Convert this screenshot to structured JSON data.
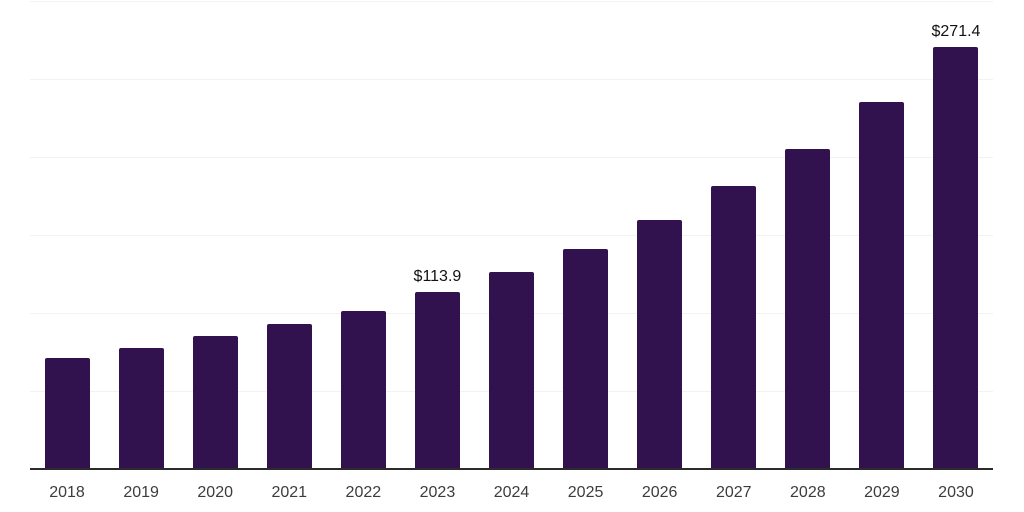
{
  "chart_data": {
    "type": "bar",
    "title": "",
    "xlabel": "",
    "ylabel": "",
    "categories": [
      "2018",
      "2019",
      "2020",
      "2021",
      "2022",
      "2023",
      "2024",
      "2025",
      "2026",
      "2027",
      "2028",
      "2029",
      "2030"
    ],
    "values": [
      71.5,
      77.9,
      85.6,
      93.9,
      102.2,
      113.9,
      126.9,
      141.8,
      160.3,
      182.0,
      205.8,
      235.7,
      271.4
    ],
    "data_labels": [
      {
        "category": "2023",
        "text": "$113.9"
      },
      {
        "category": "2030",
        "text": "$271.4"
      }
    ],
    "ylim": [
      0,
      300
    ],
    "grid_interval": 50,
    "grid": true,
    "legend": "none",
    "y_axis_tick_labels": "none",
    "colors": {
      "bar": "#32124E",
      "axis": "#2B2B2B",
      "gridline": "#F2F2F2",
      "data_label_text": "#121212",
      "tick_label_text": "#3C3C3C",
      "background": "#FFFFFF"
    }
  }
}
